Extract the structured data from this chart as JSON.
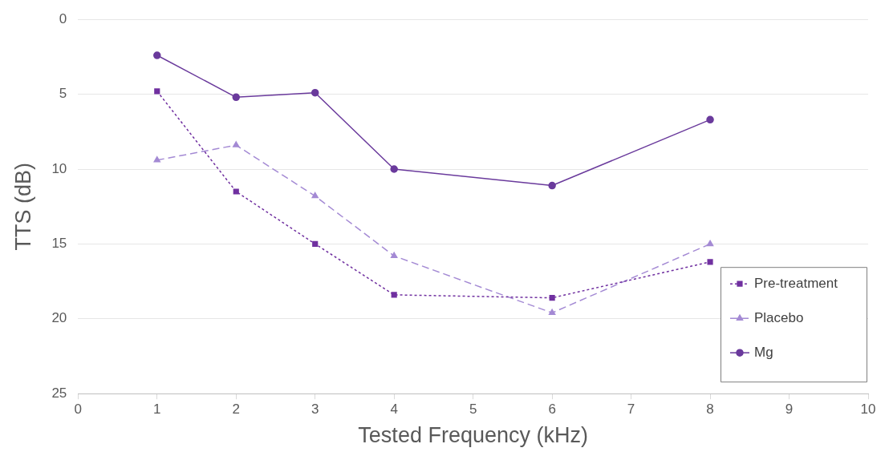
{
  "chart_data": {
    "type": "line",
    "xlabel": "Tested Frequency (kHz)",
    "ylabel": "TTS (dB)",
    "x": [
      1,
      2,
      3,
      4,
      6,
      8
    ],
    "xlim": [
      0,
      10
    ],
    "xticks": [
      0,
      1,
      2,
      3,
      4,
      5,
      6,
      7,
      8,
      9,
      10
    ],
    "ylim": [
      25,
      0
    ],
    "yticks": [
      0,
      5,
      10,
      15,
      20,
      25
    ],
    "grid": "y",
    "legend": "bottom right",
    "series": [
      {
        "name": "Pre-treatment",
        "color": "#7030a0",
        "marker": "square",
        "line_style": "dotted",
        "values": [
          4.8,
          11.5,
          15,
          18.4,
          18.6,
          16.2
        ]
      },
      {
        "name": "Placebo",
        "color": "#a48ad4",
        "marker": "triangle",
        "line_style": "dashed",
        "values": [
          9.4,
          8.4,
          11.8,
          15.8,
          19.6,
          15
        ]
      },
      {
        "name": "Mg",
        "color": "#6a3a9c",
        "marker": "circle",
        "line_style": "solid",
        "values": [
          2.4,
          5.2,
          4.9,
          10,
          11.1,
          6.7
        ]
      }
    ]
  }
}
